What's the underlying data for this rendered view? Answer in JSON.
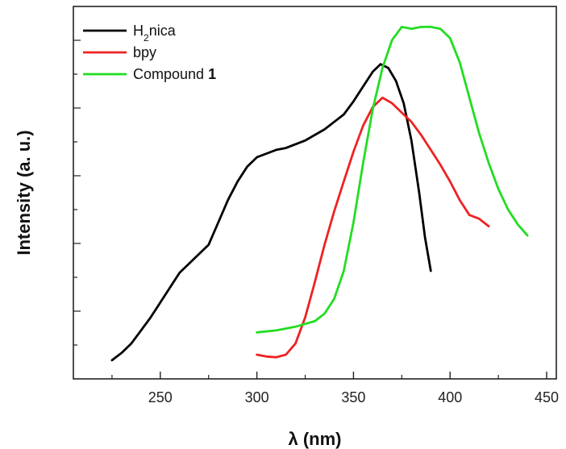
{
  "chart_data": {
    "type": "line",
    "xlabel": "λ (nm)",
    "ylabel": "Intensity (a. u.)",
    "xlim": [
      205,
      455
    ],
    "ylim": [
      0,
      1
    ],
    "x_ticks": [
      "250",
      "300",
      "350",
      "400",
      "450"
    ],
    "y_ticks_labeled": false,
    "grid": false,
    "legend_position": "top-left",
    "series": [
      {
        "name": "H₂nica",
        "legend_base": "H",
        "legend_sub": "2",
        "legend_rest": "nica",
        "color": "#000000",
        "points": [
          [
            225,
            0.05
          ],
          [
            230,
            0.07
          ],
          [
            235,
            0.095
          ],
          [
            240,
            0.13
          ],
          [
            245,
            0.165
          ],
          [
            250,
            0.205
          ],
          [
            255,
            0.245
          ],
          [
            260,
            0.285
          ],
          [
            265,
            0.31
          ],
          [
            270,
            0.335
          ],
          [
            275,
            0.36
          ],
          [
            280,
            0.42
          ],
          [
            285,
            0.48
          ],
          [
            290,
            0.53
          ],
          [
            295,
            0.57
          ],
          [
            300,
            0.595
          ],
          [
            305,
            0.605
          ],
          [
            310,
            0.615
          ],
          [
            315,
            0.62
          ],
          [
            320,
            0.63
          ],
          [
            325,
            0.64
          ],
          [
            330,
            0.655
          ],
          [
            335,
            0.67
          ],
          [
            340,
            0.69
          ],
          [
            345,
            0.71
          ],
          [
            350,
            0.745
          ],
          [
            355,
            0.785
          ],
          [
            360,
            0.825
          ],
          [
            364,
            0.845
          ],
          [
            368,
            0.835
          ],
          [
            372,
            0.8
          ],
          [
            376,
            0.74
          ],
          [
            380,
            0.64
          ],
          [
            384,
            0.5
          ],
          [
            387,
            0.38
          ],
          [
            390,
            0.29
          ]
        ]
      },
      {
        "name": "bpy",
        "legend_base": "bpy",
        "legend_sub": "",
        "legend_rest": "",
        "color": "#ee2222",
        "points": [
          [
            300,
            0.065
          ],
          [
            305,
            0.06
          ],
          [
            310,
            0.058
          ],
          [
            315,
            0.065
          ],
          [
            320,
            0.095
          ],
          [
            325,
            0.165
          ],
          [
            330,
            0.26
          ],
          [
            335,
            0.36
          ],
          [
            340,
            0.45
          ],
          [
            345,
            0.53
          ],
          [
            350,
            0.61
          ],
          [
            355,
            0.68
          ],
          [
            360,
            0.73
          ],
          [
            365,
            0.755
          ],
          [
            370,
            0.74
          ],
          [
            375,
            0.715
          ],
          [
            380,
            0.69
          ],
          [
            385,
            0.655
          ],
          [
            390,
            0.615
          ],
          [
            395,
            0.575
          ],
          [
            400,
            0.53
          ],
          [
            405,
            0.48
          ],
          [
            410,
            0.44
          ],
          [
            415,
            0.43
          ],
          [
            420,
            0.41
          ]
        ]
      },
      {
        "name": "Compound 1",
        "legend_base": "Compound ",
        "legend_sub": "",
        "legend_rest": "",
        "legend_bold": "1",
        "color": "#22dd22",
        "points": [
          [
            300,
            0.125
          ],
          [
            310,
            0.13
          ],
          [
            320,
            0.14
          ],
          [
            330,
            0.155
          ],
          [
            335,
            0.175
          ],
          [
            340,
            0.215
          ],
          [
            345,
            0.29
          ],
          [
            350,
            0.42
          ],
          [
            355,
            0.58
          ],
          [
            360,
            0.725
          ],
          [
            365,
            0.835
          ],
          [
            370,
            0.91
          ],
          [
            375,
            0.945
          ],
          [
            380,
            0.94
          ],
          [
            385,
            0.945
          ],
          [
            390,
            0.945
          ],
          [
            395,
            0.94
          ],
          [
            400,
            0.915
          ],
          [
            405,
            0.85
          ],
          [
            410,
            0.755
          ],
          [
            415,
            0.66
          ],
          [
            420,
            0.58
          ],
          [
            425,
            0.51
          ],
          [
            430,
            0.455
          ],
          [
            435,
            0.415
          ],
          [
            440,
            0.385
          ]
        ]
      }
    ]
  }
}
